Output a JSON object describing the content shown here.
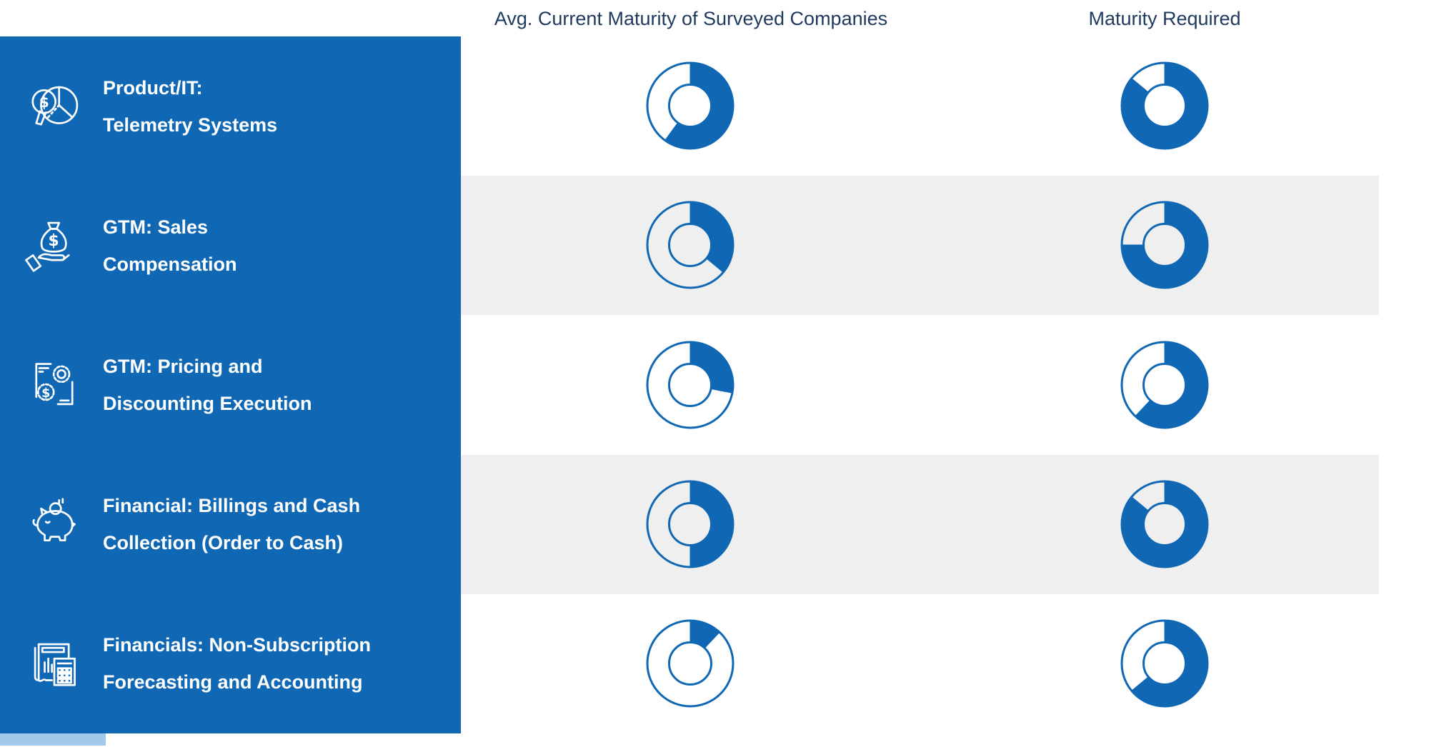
{
  "title": "Maturity comparison matrix",
  "colors": {
    "sidebar_blue": "#1068b5",
    "donut_blue": "#1068b5",
    "header_navy": "#1e3a5f",
    "stripe_gray": "#efefef",
    "accent_light_blue": "#a3c9ea",
    "label_white": "#ffffff"
  },
  "headers": {
    "current": "Avg. Current Maturity of Surveyed Companies",
    "required": "Maturity Required"
  },
  "sidebar": {
    "rows": [
      {
        "line1": "Product/IT:",
        "line2": "Telemetry Systems",
        "icon": "pie-chart-magnifier-icon"
      },
      {
        "line1": "GTM: Sales",
        "line2": "Compensation",
        "icon": "money-bag-hand-icon"
      },
      {
        "line1": "GTM: Pricing and",
        "line2": "Discounting Execution",
        "icon": "document-gears-dollar-icon"
      },
      {
        "line1": "Financial: Billings and Cash",
        "line2": "Collection (Order to Cash)",
        "icon": "piggy-bank-icon"
      },
      {
        "line1": "Financials: Non-Subscription",
        "line2": "Forecasting and Accounting",
        "icon": "receipt-calculator-icon"
      }
    ]
  },
  "chart_data": {
    "type": "pie",
    "subtype": "donut-gauge-matrix",
    "unit": "percent of donut filled, clockwise from 12 o'clock",
    "categories": [
      "Product/IT: Telemetry Systems",
      "GTM: Sales Compensation",
      "GTM: Pricing and Discounting Execution",
      "Financial: Billings and Cash Collection (Order to Cash)",
      "Financials: Non-Subscription Forecasting and Accounting"
    ],
    "series": [
      {
        "name": "Avg. Current Maturity of Surveyed Companies",
        "values": [
          60,
          36,
          28,
          50,
          12
        ]
      },
      {
        "name": "Maturity Required",
        "values": [
          86,
          75,
          62,
          86,
          64
        ]
      }
    ],
    "legend_position": "top",
    "grid": false,
    "notes": "Unfilled portion shown as outlined ring"
  }
}
